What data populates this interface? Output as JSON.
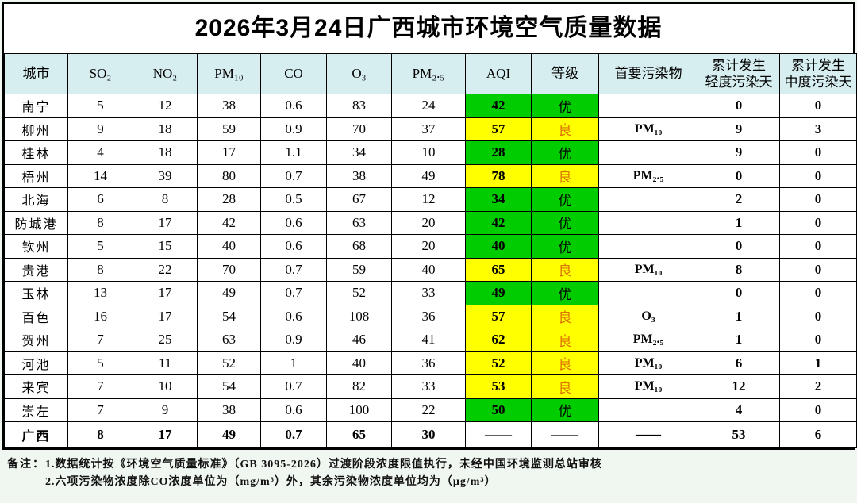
{
  "title": "2026年3月24日广西城市环境空气质量数据",
  "theme": {
    "header_bg": "#d7eef0",
    "aqi_excellent_green": "#00cc00",
    "aqi_good_yellow": "#ffff00",
    "grade_good_text": "#dd7300",
    "border": "#000000"
  },
  "table": {
    "columns": [
      "城市",
      "SO₂",
      "NO₂",
      "PM₁₀",
      "CO",
      "O₃",
      "PM₂.₅",
      "AQI",
      "等级",
      "首要污染物",
      "累计发生\n轻度污染天",
      "累计发生\n中度污染天"
    ],
    "rows": [
      {
        "city": "南宁",
        "so2": "5",
        "no2": "12",
        "pm10": "38",
        "co": "0.6",
        "o3": "83",
        "pm25": "24",
        "aqi": "42",
        "grade": "优",
        "pollutant": "",
        "light_days": "0",
        "moderate_days": "0",
        "level": "excellent"
      },
      {
        "city": "柳州",
        "so2": "9",
        "no2": "18",
        "pm10": "59",
        "co": "0.9",
        "o3": "70",
        "pm25": "37",
        "aqi": "57",
        "grade": "良",
        "pollutant": "PM₁₀",
        "light_days": "9",
        "moderate_days": "3",
        "level": "good"
      },
      {
        "city": "桂林",
        "so2": "4",
        "no2": "18",
        "pm10": "17",
        "co": "1.1",
        "o3": "34",
        "pm25": "10",
        "aqi": "28",
        "grade": "优",
        "pollutant": "",
        "light_days": "9",
        "moderate_days": "0",
        "level": "excellent"
      },
      {
        "city": "梧州",
        "so2": "14",
        "no2": "39",
        "pm10": "80",
        "co": "0.7",
        "o3": "38",
        "pm25": "49",
        "aqi": "78",
        "grade": "良",
        "pollutant": "PM₂.₅",
        "light_days": "0",
        "moderate_days": "0",
        "level": "good"
      },
      {
        "city": "北海",
        "so2": "6",
        "no2": "8",
        "pm10": "28",
        "co": "0.5",
        "o3": "67",
        "pm25": "12",
        "aqi": "34",
        "grade": "优",
        "pollutant": "",
        "light_days": "2",
        "moderate_days": "0",
        "level": "excellent"
      },
      {
        "city": "防城港",
        "so2": "8",
        "no2": "17",
        "pm10": "42",
        "co": "0.6",
        "o3": "63",
        "pm25": "20",
        "aqi": "42",
        "grade": "优",
        "pollutant": "",
        "light_days": "1",
        "moderate_days": "0",
        "level": "excellent"
      },
      {
        "city": "钦州",
        "so2": "5",
        "no2": "15",
        "pm10": "40",
        "co": "0.6",
        "o3": "68",
        "pm25": "20",
        "aqi": "40",
        "grade": "优",
        "pollutant": "",
        "light_days": "0",
        "moderate_days": "0",
        "level": "excellent"
      },
      {
        "city": "贵港",
        "so2": "8",
        "no2": "22",
        "pm10": "70",
        "co": "0.7",
        "o3": "59",
        "pm25": "40",
        "aqi": "65",
        "grade": "良",
        "pollutant": "PM₁₀",
        "light_days": "8",
        "moderate_days": "0",
        "level": "good"
      },
      {
        "city": "玉林",
        "so2": "13",
        "no2": "17",
        "pm10": "49",
        "co": "0.7",
        "o3": "52",
        "pm25": "33",
        "aqi": "49",
        "grade": "优",
        "pollutant": "",
        "light_days": "0",
        "moderate_days": "0",
        "level": "excellent"
      },
      {
        "city": "百色",
        "so2": "16",
        "no2": "17",
        "pm10": "54",
        "co": "0.6",
        "o3": "108",
        "pm25": "36",
        "aqi": "57",
        "grade": "良",
        "pollutant": "O₃",
        "light_days": "1",
        "moderate_days": "0",
        "level": "good"
      },
      {
        "city": "贺州",
        "so2": "7",
        "no2": "25",
        "pm10": "63",
        "co": "0.9",
        "o3": "46",
        "pm25": "41",
        "aqi": "62",
        "grade": "良",
        "pollutant": "PM₂.₅",
        "light_days": "1",
        "moderate_days": "0",
        "level": "good"
      },
      {
        "city": "河池",
        "so2": "5",
        "no2": "11",
        "pm10": "52",
        "co": "1",
        "o3": "40",
        "pm25": "36",
        "aqi": "52",
        "grade": "良",
        "pollutant": "PM₁₀",
        "light_days": "6",
        "moderate_days": "1",
        "level": "good"
      },
      {
        "city": "来宾",
        "so2": "7",
        "no2": "10",
        "pm10": "54",
        "co": "0.7",
        "o3": "82",
        "pm25": "33",
        "aqi": "53",
        "grade": "良",
        "pollutant": "PM₁₀",
        "light_days": "12",
        "moderate_days": "2",
        "level": "good"
      },
      {
        "city": "崇左",
        "so2": "7",
        "no2": "9",
        "pm10": "38",
        "co": "0.6",
        "o3": "100",
        "pm25": "22",
        "aqi": "50",
        "grade": "优",
        "pollutant": "",
        "light_days": "4",
        "moderate_days": "0",
        "level": "excellent"
      },
      {
        "city": "广西",
        "so2": "8",
        "no2": "17",
        "pm10": "49",
        "co": "0.7",
        "o3": "65",
        "pm25": "30",
        "aqi": "——",
        "grade": "——",
        "pollutant": "——",
        "light_days": "53",
        "moderate_days": "6",
        "level": "summary"
      }
    ]
  },
  "footnote": {
    "label": "备注：",
    "lines": [
      "1.数据统计按《环境空气质量标准》（GB 3095-2026）过渡阶段浓度限值执行，未经中国环境监测总站审核",
      "2.六项污染物浓度除CO浓度单位为（mg/m³）外，其余污染物浓度单位均为（μg/m³）"
    ]
  }
}
